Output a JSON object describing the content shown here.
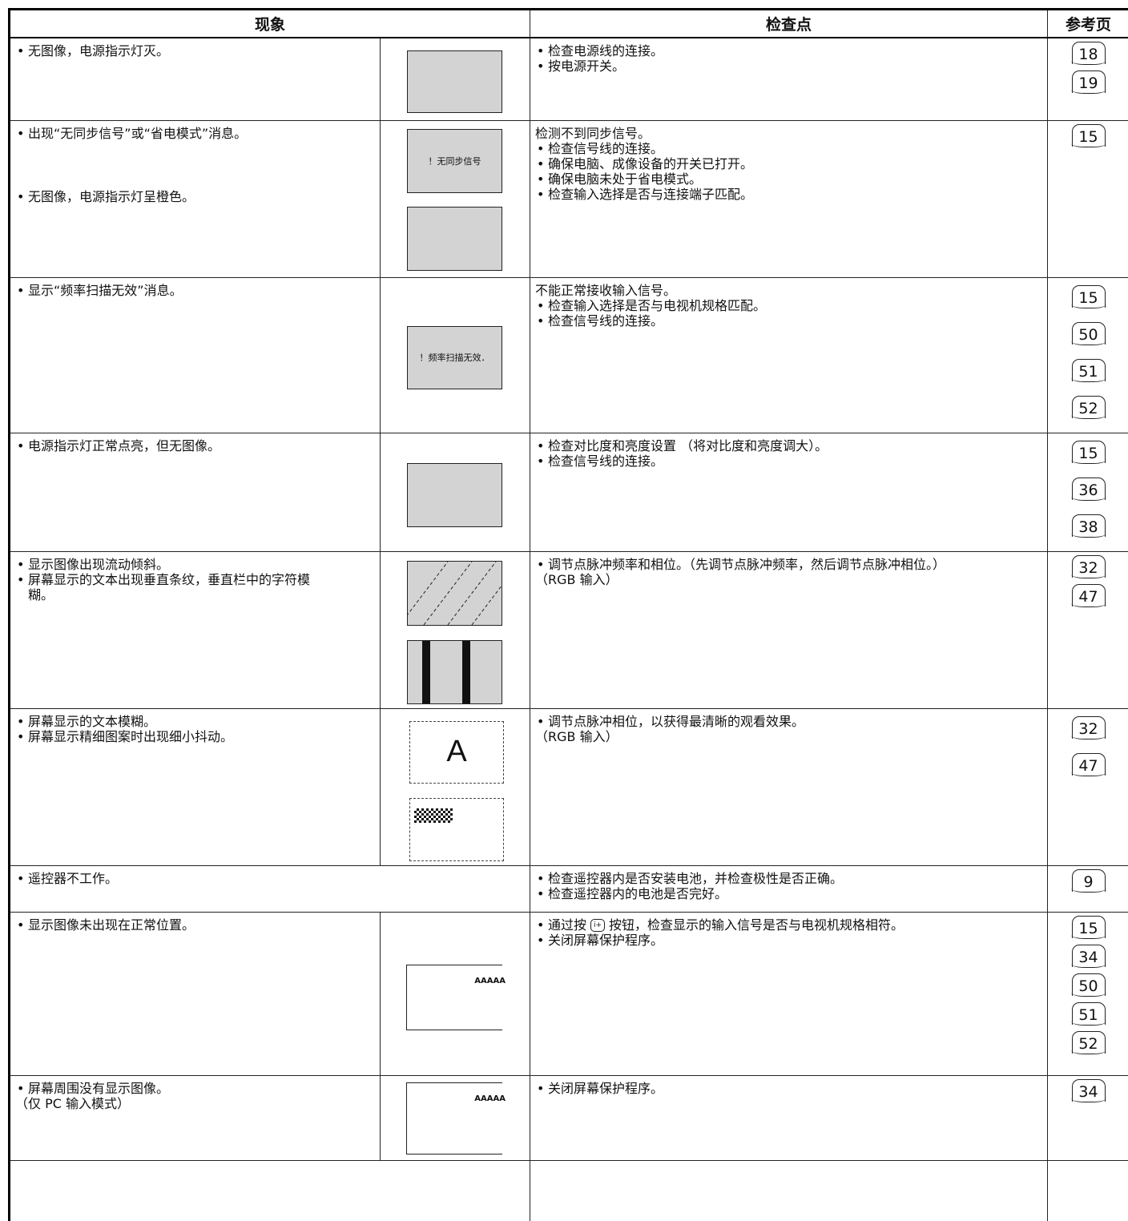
{
  "header": {
    "symptom": "现象",
    "check": "检查点",
    "page": "参考页"
  },
  "rows": [
    {
      "symptoms": [
        "无图像，电源指示灯灭。"
      ],
      "checks": [
        "检查电源线的连接。",
        "按电源开关。"
      ],
      "pages": [
        18,
        19
      ]
    },
    {
      "symptoms": [
        "出现“无同步信号”或“省电模式”消息。",
        "无图像，电源指示灯呈橙色。"
      ],
      "screen_text": "！无同步信号",
      "checks": [
        "检测不到同步信号。",
        "检查信号线的连接。",
        "确保电脑、成像设备的开关已打开。",
        "确保电脑未处于省电模式。",
        "检查输入选择是否与连接端子匹配。"
      ],
      "pages": [
        15
      ]
    },
    {
      "symptoms": [
        "显示“频率扫描无效”消息。"
      ],
      "screen_text": "！频率扫描无效．",
      "checks": [
        "不能正常接收输入信号。",
        "检查输入选择是否与电视机规格匹配。",
        "检查信号线的连接。"
      ],
      "pages": [
        15,
        50,
        51,
        52
      ]
    },
    {
      "symptoms": [
        "电源指示灯正常点亮，但无图像。"
      ],
      "checks": [
        "检查对比度和亮度设置 （将对比度和亮度调大）。",
        "检查信号线的连接。"
      ],
      "pages": [
        15,
        36,
        38
      ]
    },
    {
      "symptoms": [
        "显示图像出现流动倾斜。",
        "屏幕显示的文本出现垂直条纹，垂直栏中的字符模糊。"
      ],
      "checks": [
        "调节点脉冲频率和相位。（先调节点脉冲频率，然后调节点脉冲相位。）",
        "（RGB 输入）"
      ],
      "pages": [
        32,
        47
      ]
    },
    {
      "symptoms": [
        "屏幕显示的文本模糊。",
        "屏幕显示精细图案时出现细小抖动。"
      ],
      "screen_text": "A",
      "checks": [
        "调节点脉冲相位，以获得最清晰的观看效果。",
        "（RGB 输入）"
      ],
      "pages": [
        32,
        47
      ]
    },
    {
      "symptoms": [
        "遥控器不工作。"
      ],
      "checks": [
        "检查遥控器内是否安装电池，并检查极性是否正确。",
        "检查遥控器内的电池是否完好。"
      ],
      "pages": [
        9
      ]
    },
    {
      "symptoms": [
        "显示图像未出现在正常位置。"
      ],
      "screen_text": "AAAAA",
      "checks": [
        "通过按",
        "按钮，检查显示的输入信号是否与电视机规格相符。",
        "关闭屏幕保护程序。"
      ],
      "pages": [
        15,
        34,
        50,
        51,
        52
      ]
    },
    {
      "symptoms": [
        "屏幕周围没有显示图像。",
        "（仅 PC 输入模式）"
      ],
      "screen_text": "AAAAA",
      "checks": [
        "关闭屏幕保护程序。"
      ],
      "pages": [
        34
      ]
    }
  ]
}
